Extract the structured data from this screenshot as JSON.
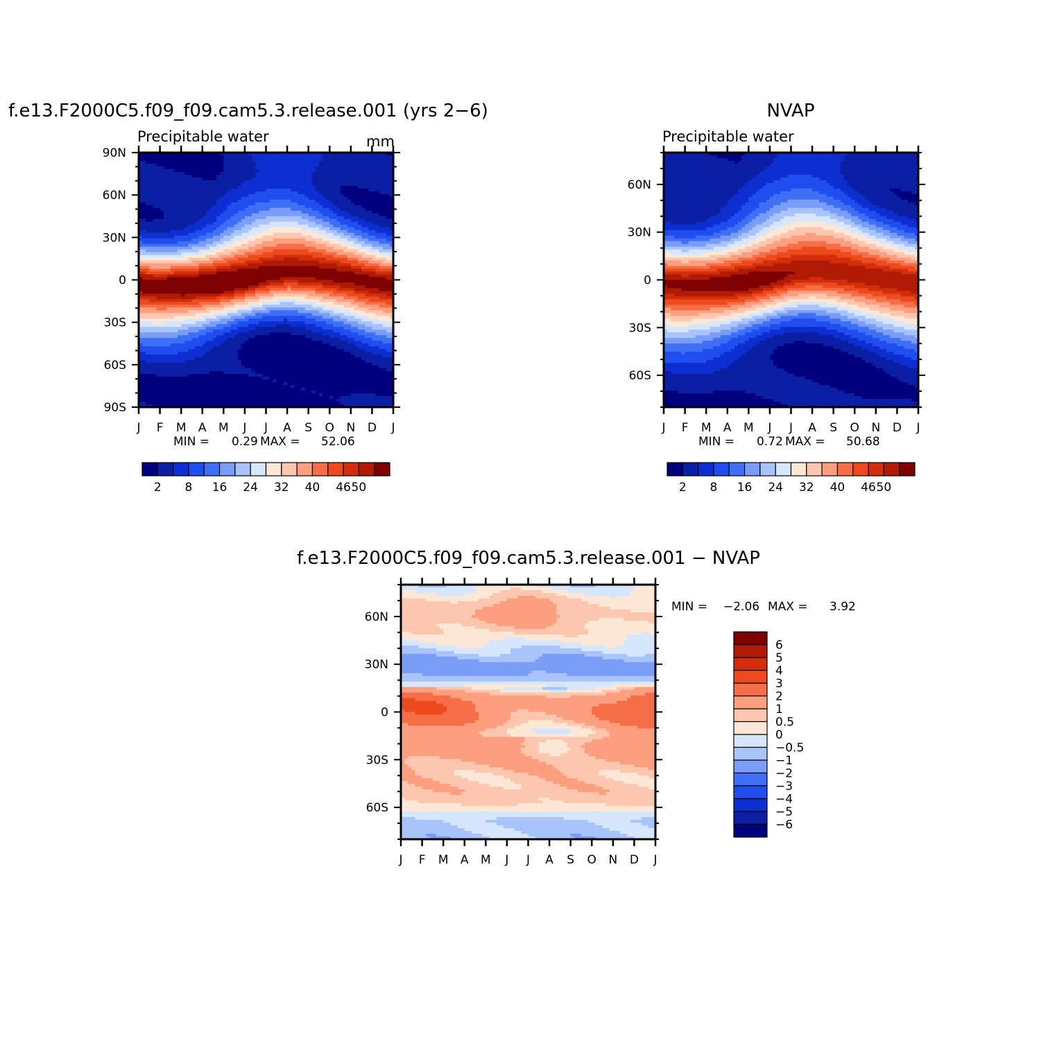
{
  "chart_data": [
    {
      "type": "heatmap",
      "id": "model",
      "title": "f.e13.F2000C5.f09_f09.cam5.3.release.001 (yrs 2−6)",
      "subtitle": "Precipitable water",
      "units": "mm",
      "x": [
        "J",
        "F",
        "M",
        "A",
        "M",
        "J",
        "J",
        "A",
        "S",
        "O",
        "N",
        "D",
        "J"
      ],
      "ylim": [
        -90,
        90
      ],
      "y_ticks": [
        {
          "value": 90,
          "label": "90N"
        },
        {
          "value": 60,
          "label": "60N"
        },
        {
          "value": 30,
          "label": "30N"
        },
        {
          "value": 0,
          "label": "0"
        },
        {
          "value": -30,
          "label": "30S"
        },
        {
          "value": -60,
          "label": "60S"
        },
        {
          "value": -90,
          "label": "90S"
        }
      ],
      "min_label": "MIN =",
      "min": "0.29",
      "max_label": "MAX =",
      "max": "52.06",
      "itcz_lat": [
        -4,
        -5,
        -5,
        -4,
        -2,
        1,
        4,
        6,
        5,
        3,
        1,
        -2,
        -4
      ],
      "peak_value": 52,
      "pole_north": 2,
      "pole_south": 0.8,
      "colorbar_labels": [
        "2",
        "8",
        "16",
        "24",
        "32",
        "40",
        "46",
        "50"
      ]
    },
    {
      "type": "heatmap",
      "id": "obs",
      "title": "NVAP",
      "subtitle": "Precipitable water",
      "x": [
        "J",
        "F",
        "M",
        "A",
        "M",
        "J",
        "J",
        "A",
        "S",
        "O",
        "N",
        "D",
        "J"
      ],
      "ylim": [
        -80,
        80
      ],
      "y_ticks": [
        {
          "value": 60,
          "label": "60N"
        },
        {
          "value": 30,
          "label": "30N"
        },
        {
          "value": 0,
          "label": "0"
        },
        {
          "value": -30,
          "label": "30S"
        },
        {
          "value": -60,
          "label": "60S"
        }
      ],
      "min_label": "MIN =",
      "min": "0.72",
      "max_label": "MAX =",
      "max": "50.68",
      "itcz_lat": [
        -3,
        -4,
        -4,
        -3,
        -1,
        2,
        5,
        6,
        5,
        3,
        1,
        -1,
        -3
      ],
      "peak_value": 50.5,
      "pole_north": 2.5,
      "pole_south": 1.5,
      "colorbar_labels": [
        "2",
        "8",
        "16",
        "24",
        "32",
        "40",
        "46",
        "50"
      ]
    },
    {
      "type": "heatmap",
      "id": "diff",
      "title": "f.e13.F2000C5.f09_f09.cam5.3.release.001 − NVAP",
      "x": [
        "J",
        "F",
        "M",
        "A",
        "M",
        "J",
        "J",
        "A",
        "S",
        "O",
        "N",
        "D",
        "J"
      ],
      "ylim": [
        -80,
        80
      ],
      "y_ticks": [
        {
          "value": 60,
          "label": "60N"
        },
        {
          "value": 30,
          "label": "30N"
        },
        {
          "value": 0,
          "label": "0"
        },
        {
          "value": -30,
          "label": "30S"
        },
        {
          "value": -60,
          "label": "60S"
        }
      ],
      "min_label": "MIN =",
      "min": "−2.06",
      "max_label": "MAX =",
      "max": "3.92",
      "lat_profile": [
        {
          "lat": 80,
          "v": -0.3
        },
        {
          "lat": 70,
          "v": 0.4
        },
        {
          "lat": 60,
          "v": 0.6
        },
        {
          "lat": 50,
          "v": 0.3
        },
        {
          "lat": 40,
          "v": -0.4
        },
        {
          "lat": 30,
          "v": -1.3
        },
        {
          "lat": 22,
          "v": -1.0
        },
        {
          "lat": 15,
          "v": 0.3
        },
        {
          "lat": 10,
          "v": 1.6
        },
        {
          "lat": 5,
          "v": 2.2
        },
        {
          "lat": 0,
          "v": 2.0
        },
        {
          "lat": -5,
          "v": 1.8
        },
        {
          "lat": -12,
          "v": 0.8
        },
        {
          "lat": -22,
          "v": 1.5
        },
        {
          "lat": -30,
          "v": 1.1
        },
        {
          "lat": -40,
          "v": 0.7
        },
        {
          "lat": -50,
          "v": 0.8
        },
        {
          "lat": -57,
          "v": 0.6
        },
        {
          "lat": -62,
          "v": 0.1
        },
        {
          "lat": -68,
          "v": -0.6
        },
        {
          "lat": -80,
          "v": -0.7
        }
      ],
      "colorbar_labels": [
        "6",
        "5",
        "4",
        "3",
        "2",
        "1",
        "0.5",
        "0",
        "−0.5",
        "−1",
        "−2",
        "−3",
        "−4",
        "−5",
        "−6"
      ]
    }
  ],
  "palette": {
    "precip": [
      "#00007f",
      "#0a1fa3",
      "#0d2ed0",
      "#1f4df0",
      "#3f6ff5",
      "#7a9ef8",
      "#a9c3fb",
      "#d6e6fd",
      "#fde8d8",
      "#fdc6ae",
      "#fb9f7f",
      "#f66e48",
      "#ed4a1d",
      "#d22e0b",
      "#b11a05",
      "#7f0000"
    ],
    "precip_thresholds": [
      2,
      5,
      8,
      12,
      16,
      20,
      24,
      28,
      32,
      36,
      40,
      43,
      46,
      48,
      50
    ],
    "diff": [
      "#00007f",
      "#0a1fa3",
      "#0d2ed0",
      "#1f4df0",
      "#3f6ff5",
      "#7a9ef8",
      "#a9c3fb",
      "#d6e6fd",
      "#fde8d8",
      "#fdc6ae",
      "#fb9f7f",
      "#f66e48",
      "#ed4a1d",
      "#d22e0b",
      "#b11a05",
      "#7f0000"
    ],
    "diff_thresholds": [
      -6,
      -5,
      -4,
      -3,
      -2,
      -1,
      -0.5,
      0,
      0.5,
      1,
      2,
      3,
      4,
      5,
      6
    ]
  }
}
